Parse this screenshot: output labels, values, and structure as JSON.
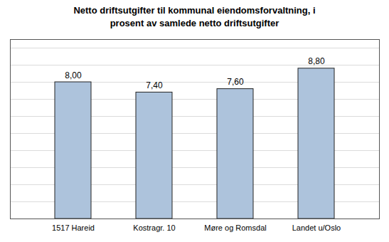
{
  "chart_data": {
    "type": "bar",
    "title": "Netto driftsutgifter til kommunal eiendomsforvaltning, i\nprosent av samlede netto driftsutgifter",
    "categories": [
      "1517 Hareid",
      "Kostragr. 10",
      "Møre og Romsdal",
      "Landet u/Oslo"
    ],
    "values": [
      8.0,
      7.4,
      7.6,
      8.8
    ],
    "value_labels": [
      "8,00",
      "7,40",
      "7,60",
      "8,80"
    ],
    "data_labels": true,
    "color": "#adc3dc",
    "ylim": [
      0,
      10.5
    ],
    "yticks": [
      1,
      2,
      3,
      4,
      5,
      6,
      7,
      8,
      9,
      10
    ],
    "grid": true,
    "tick_labels": "x"
  }
}
